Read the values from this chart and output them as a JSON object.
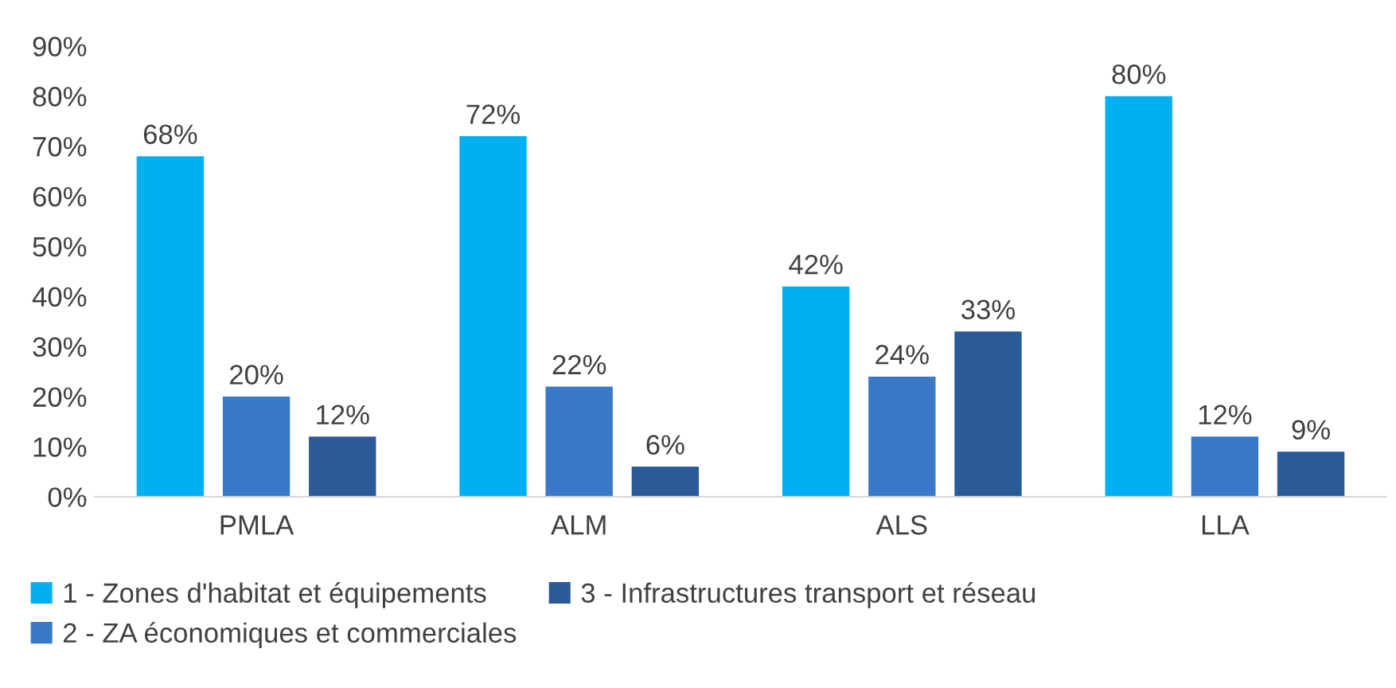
{
  "chart_data": {
    "type": "bar",
    "categories": [
      "PMLA",
      "ALM",
      "ALS",
      "LLA"
    ],
    "series": [
      {
        "name": "1 - Zones d'habitat et équipements",
        "color": "#00b0f0",
        "values": [
          68,
          72,
          42,
          80
        ],
        "value_labels": [
          "68%",
          "72%",
          "42%",
          "80%"
        ]
      },
      {
        "name": "2 - ZA économiques et commerciales",
        "color": "#3a78c8",
        "values": [
          20,
          22,
          24,
          12
        ],
        "value_labels": [
          "20%",
          "22%",
          "24%",
          "12%"
        ]
      },
      {
        "name": "3 - Infrastructures transport et réseau",
        "color": "#2a5a97",
        "values": [
          12,
          6,
          33,
          9
        ],
        "value_labels": [
          "12%",
          "6%",
          "33%",
          "9%"
        ]
      }
    ],
    "ylim": [
      0,
      90
    ],
    "yticks": [
      {
        "value": 0,
        "label": "0%"
      },
      {
        "value": 10,
        "label": "10%"
      },
      {
        "value": 20,
        "label": "20%"
      },
      {
        "value": 30,
        "label": "30%"
      },
      {
        "value": 40,
        "label": "40%"
      },
      {
        "value": 50,
        "label": "50%"
      },
      {
        "value": 60,
        "label": "60%"
      },
      {
        "value": 70,
        "label": "70%"
      },
      {
        "value": 80,
        "label": "80%"
      },
      {
        "value": 90,
        "label": "90%"
      }
    ],
    "grid": false,
    "legend": "bottom"
  }
}
